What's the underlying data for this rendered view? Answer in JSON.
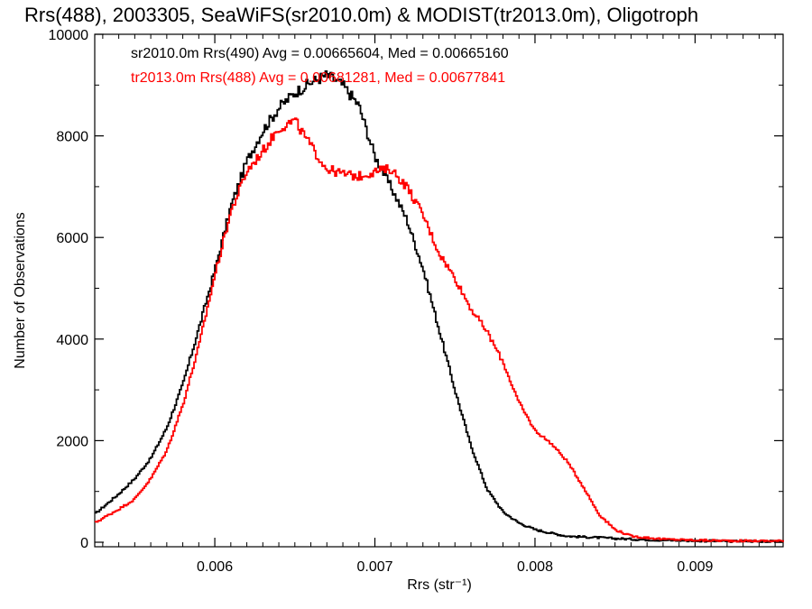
{
  "chart_data": {
    "type": "line",
    "title": "Rrs(488), 2003305, SeaWiFS(sr2010.0m) & MODIST(tr2013.0m), Oligotroph",
    "xlabel": "Rrs (str⁻¹)",
    "ylabel": "Number of Observations",
    "xlim": [
      0.00525,
      0.00955
    ],
    "ylim": [
      0,
      10000
    ],
    "x_ticks": [
      0.006,
      0.007,
      0.008,
      0.009
    ],
    "x_tick_labels": [
      "0.006",
      "0.007",
      "0.008",
      "0.009"
    ],
    "y_ticks": [
      0,
      2000,
      4000,
      6000,
      8000,
      10000
    ],
    "y_tick_labels": [
      "0",
      "2000",
      "4000",
      "6000",
      "8000",
      "10000"
    ],
    "legend_position": "top-left",
    "series": [
      {
        "name": "sr2010.0m Rrs(490) Avg = 0.00665604, Med = 0.00665160",
        "color": "#000000",
        "style": "step",
        "x": [
          0.00525,
          0.0054,
          0.0055,
          0.0056,
          0.0057,
          0.0058,
          0.0059,
          0.006,
          0.0061,
          0.0062,
          0.0063,
          0.0064,
          0.0065,
          0.0066,
          0.0067,
          0.0068,
          0.0069,
          0.007,
          0.0071,
          0.0072,
          0.0073,
          0.0074,
          0.0075,
          0.0076,
          0.0077,
          0.0078,
          0.0079,
          0.008,
          0.0081,
          0.0082,
          0.0084,
          0.0086,
          0.0088,
          0.009,
          0.0092,
          0.00955
        ],
        "values": [
          550,
          950,
          1250,
          1650,
          2250,
          3100,
          4200,
          5350,
          6600,
          7500,
          8100,
          8550,
          8850,
          9050,
          9200,
          9000,
          8600,
          7600,
          7000,
          6350,
          5400,
          4200,
          3000,
          1900,
          1050,
          600,
          380,
          250,
          180,
          120,
          90,
          60,
          40,
          30,
          20,
          15
        ]
      },
      {
        "name": "tr2013.0m Rrs(488) Avg = 0.00681281, Med = 0.00677841",
        "color": "#ff0000",
        "style": "step",
        "x": [
          0.00525,
          0.0054,
          0.0055,
          0.0056,
          0.0057,
          0.0058,
          0.0059,
          0.006,
          0.0061,
          0.0062,
          0.0063,
          0.0064,
          0.0065,
          0.0066,
          0.0067,
          0.0068,
          0.0069,
          0.007,
          0.0071,
          0.0072,
          0.0073,
          0.0074,
          0.0075,
          0.0076,
          0.0077,
          0.0078,
          0.0079,
          0.008,
          0.0081,
          0.0082,
          0.0083,
          0.0084,
          0.0085,
          0.0086,
          0.0088,
          0.009,
          0.0092,
          0.00955
        ],
        "values": [
          380,
          650,
          850,
          1250,
          1800,
          2700,
          3850,
          5250,
          6500,
          7300,
          7700,
          8150,
          8300,
          7800,
          7350,
          7250,
          7200,
          7300,
          7350,
          7000,
          6450,
          5700,
          5200,
          4600,
          4150,
          3550,
          2750,
          2200,
          1950,
          1600,
          1100,
          550,
          250,
          120,
          60,
          40,
          30,
          25
        ]
      }
    ]
  }
}
